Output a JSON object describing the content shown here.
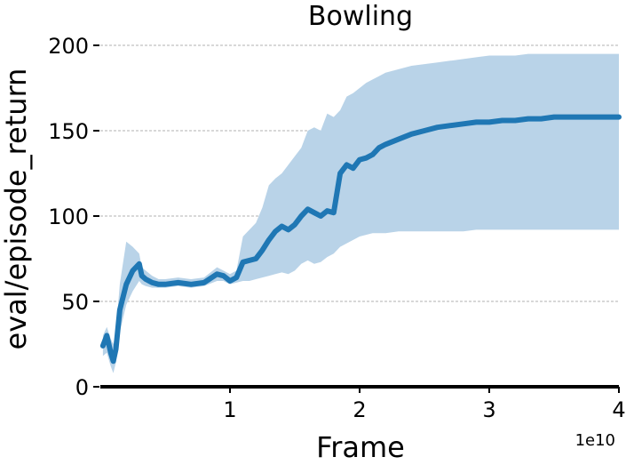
{
  "chart_data": {
    "type": "line",
    "title": "Bowling",
    "xlabel": "Frame",
    "ylabel": "eval/episode_return",
    "x_offset_label": "1e10",
    "xlim": [
      0,
      4
    ],
    "ylim": [
      0,
      200
    ],
    "x_ticks": [
      {
        "value": 1,
        "label": "1"
      },
      {
        "value": 2,
        "label": "2"
      },
      {
        "value": 3,
        "label": "3"
      },
      {
        "value": 4,
        "label": "4"
      }
    ],
    "y_ticks": [
      {
        "value": 0,
        "label": "0"
      },
      {
        "value": 50,
        "label": "50"
      },
      {
        "value": 100,
        "label": "100"
      },
      {
        "value": 150,
        "label": "150"
      },
      {
        "value": 200,
        "label": "200"
      }
    ],
    "grid": "horizontal dashed",
    "colors": {
      "line": "#1f77b4",
      "band": "#b9d3e8"
    },
    "series": [
      {
        "x": [
          0.02,
          0.05,
          0.08,
          0.1,
          0.12,
          0.15,
          0.2,
          0.25,
          0.3,
          0.32,
          0.35,
          0.4,
          0.45,
          0.5,
          0.6,
          0.7,
          0.8,
          0.9,
          0.95,
          1.0,
          1.05,
          1.1,
          1.15,
          1.2,
          1.25,
          1.3,
          1.35,
          1.4,
          1.45,
          1.5,
          1.55,
          1.6,
          1.65,
          1.7,
          1.75,
          1.8,
          1.85,
          1.9,
          1.95,
          2.0,
          2.05,
          2.1,
          2.15,
          2.2,
          2.3,
          2.4,
          2.5,
          2.6,
          2.7,
          2.8,
          2.9,
          3.0,
          3.1,
          3.2,
          3.3,
          3.4,
          3.5,
          3.6,
          3.7,
          3.8,
          3.9,
          4.0
        ],
        "y": [
          24,
          30,
          20,
          15,
          22,
          45,
          60,
          68,
          72,
          65,
          63,
          61,
          60,
          60,
          61,
          60,
          61,
          66,
          65,
          62,
          64,
          73,
          74,
          75,
          80,
          86,
          91,
          94,
          92,
          95,
          100,
          104,
          102,
          100,
          103,
          102,
          125,
          130,
          128,
          133,
          134,
          136,
          140,
          142,
          145,
          148,
          150,
          152,
          153,
          154,
          155,
          155,
          156,
          156,
          157,
          157,
          158,
          158,
          158,
          158,
          158,
          158
        ],
        "upper": [
          30,
          35,
          28,
          25,
          32,
          60,
          85,
          82,
          78,
          70,
          68,
          65,
          63,
          63,
          64,
          63,
          64,
          70,
          68,
          66,
          68,
          88,
          92,
          96,
          105,
          118,
          122,
          125,
          130,
          135,
          140,
          150,
          152,
          150,
          160,
          158,
          162,
          170,
          172,
          175,
          178,
          180,
          182,
          184,
          186,
          188,
          189,
          190,
          191,
          192,
          193,
          194,
          194,
          194,
          195,
          195,
          195,
          195,
          195,
          195,
          195,
          195
        ],
        "lower": [
          18,
          20,
          12,
          8,
          14,
          32,
          48,
          56,
          62,
          60,
          59,
          58,
          58,
          58,
          59,
          58,
          59,
          62,
          62,
          60,
          61,
          62,
          62,
          63,
          64,
          65,
          66,
          67,
          66,
          68,
          72,
          74,
          72,
          73,
          76,
          78,
          82,
          84,
          86,
          88,
          89,
          90,
          90,
          90,
          91,
          91,
          91,
          91,
          91,
          91,
          92,
          92,
          92,
          92,
          92,
          92,
          92,
          92,
          92,
          92,
          92,
          92
        ]
      }
    ]
  }
}
